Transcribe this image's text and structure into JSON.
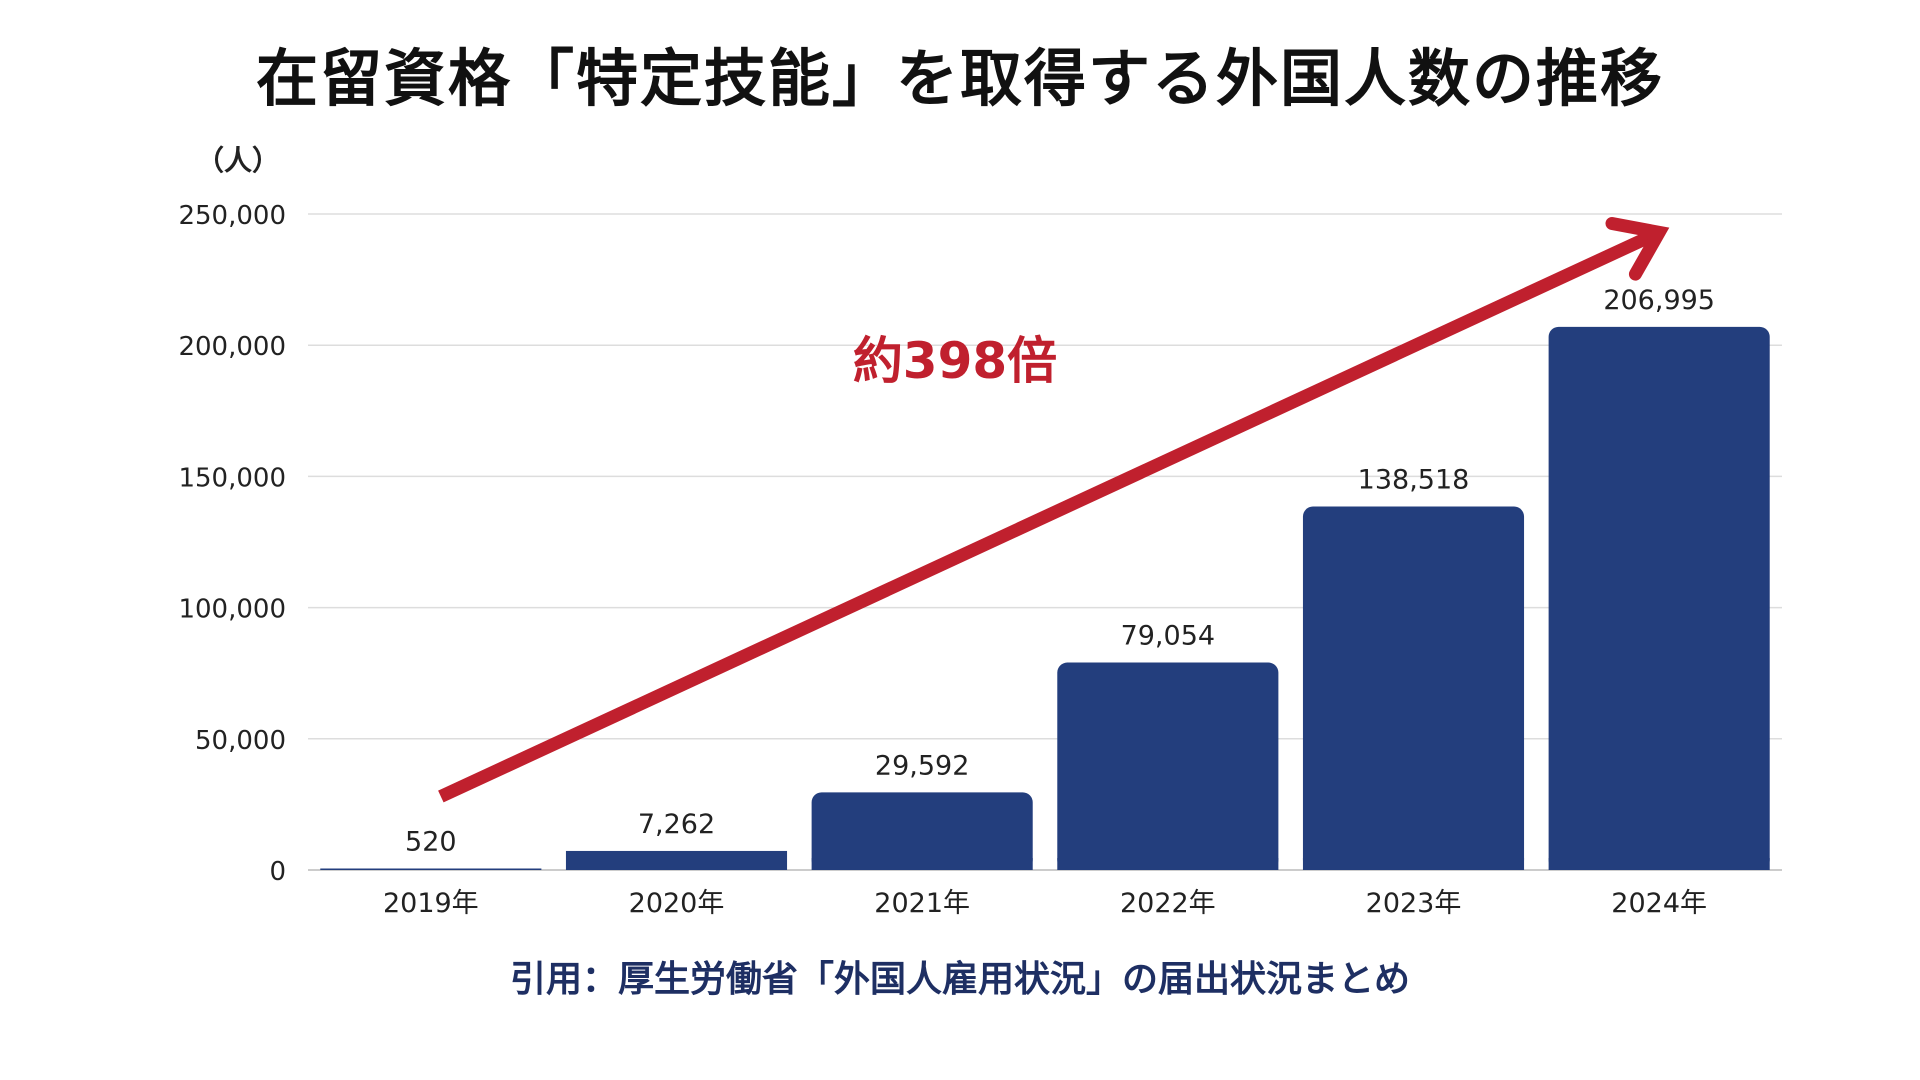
{
  "title": "在留資格「特定技能」を取得する外国人数の推移",
  "unit_label": "（人）",
  "source": "引用：厚生労働省「外国人雇用状況」の届出状況まとめ",
  "colors": {
    "bar": "#233e7d",
    "arrow": "#c0202e",
    "grid": "#dddddd",
    "text": "#222222"
  },
  "chart_data": {
    "type": "bar",
    "title": "在留資格「特定技能」を取得する外国人数の推移",
    "xlabel": "",
    "ylabel": "（人）",
    "categories": [
      "2019年",
      "2020年",
      "2021年",
      "2022年",
      "2023年",
      "2024年"
    ],
    "values": [
      520,
      7262,
      29592,
      79054,
      138518,
      206995
    ],
    "value_labels": [
      "520",
      "7,262",
      "29,592",
      "79,054",
      "138,518",
      "206,995"
    ],
    "ylim": [
      0,
      250000
    ],
    "yticks": [
      0,
      50000,
      100000,
      150000,
      200000,
      250000
    ],
    "ytick_labels": [
      "0",
      "50,000",
      "100,000",
      "150,000",
      "200,000",
      "250,000"
    ],
    "grid": true,
    "annotation": {
      "text": "約398倍",
      "type": "arrow",
      "from_category": "2019年",
      "to_category": "2024年"
    }
  }
}
